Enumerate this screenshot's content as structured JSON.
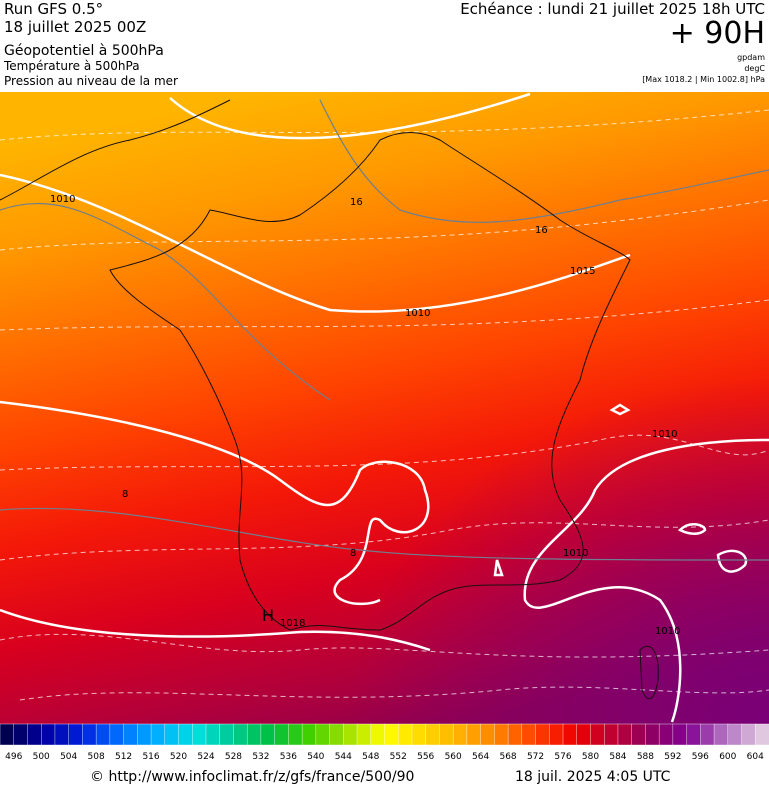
{
  "header": {
    "run": "Run GFS 0.5°",
    "run_date": "18 juillet 2025 00Z",
    "field_1": "Géopotentiel à 500hPa",
    "field_2": "Température à 500hPa",
    "field_3": "Pression au niveau de la mer",
    "valid": "Echéance : lundi 21 juillet 2025 18h UTC",
    "lead": "+ 90H",
    "unit_1": "gpdam",
    "unit_2": "degC",
    "range": "[Max 1018.2 | Min 1002.8] hPa"
  },
  "map": {
    "labels": [
      "1010",
      "16",
      "16",
      "1015",
      "1010",
      "1010",
      "1010",
      "1010",
      "H",
      "1018",
      "8",
      "8"
    ]
  },
  "colorbar": {
    "labels": [
      496,
      500,
      504,
      508,
      512,
      516,
      520,
      524,
      528,
      532,
      536,
      540,
      544,
      548,
      552,
      556,
      560,
      564,
      568,
      572,
      576,
      580,
      584,
      588,
      592,
      596,
      600,
      604
    ],
    "colors": [
      "#000050",
      "#0000a0",
      "#0020e0",
      "#0070ff",
      "#00b0ff",
      "#00e0e0",
      "#00c890",
      "#00c040",
      "#40d000",
      "#a0e000",
      "#ffff00",
      "#ffd800",
      "#ffb000",
      "#ff8000",
      "#ff4000",
      "#f00000",
      "#c00030",
      "#900060",
      "#800090",
      "#b070c0",
      "#e0c8e0"
    ]
  },
  "footer": {
    "source": "© http://www.infoclimat.fr/z/gfs/france/500/90",
    "timestamp": "18 juil. 2025  4:05 UTC"
  }
}
